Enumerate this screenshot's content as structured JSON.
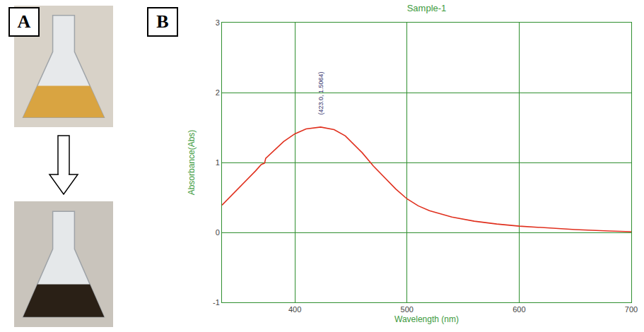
{
  "panel_labels": [
    "A",
    "B"
  ],
  "chart_data": {
    "type": "line",
    "title": "Sample-1",
    "x_label": "Wavelength (nm)",
    "y_label": "Absorbance(Abs)",
    "x": [
      335,
      345,
      355,
      365,
      370,
      373,
      374,
      380,
      390,
      400,
      410,
      423,
      435,
      445,
      450,
      452,
      460,
      470,
      480,
      490,
      500,
      510,
      520,
      540,
      560,
      580,
      600,
      620,
      650,
      680,
      700
    ],
    "values": [
      0.39,
      0.55,
      0.72,
      0.88,
      0.97,
      0.99,
      1.06,
      1.15,
      1.3,
      1.41,
      1.48,
      1.5064,
      1.47,
      1.38,
      1.3,
      1.27,
      1.14,
      0.95,
      0.78,
      0.62,
      0.48,
      0.38,
      0.31,
      0.22,
      0.16,
      0.12,
      0.09,
      0.07,
      0.04,
      0.02,
      0.01
    ],
    "color": "#e0301e",
    "xlim": [
      335,
      700
    ],
    "xticks": [
      400,
      500,
      600,
      700
    ],
    "ylim": [
      -1,
      3
    ],
    "yticks": [
      -1,
      0,
      1,
      2,
      3
    ],
    "grid": true,
    "annotations": [
      {
        "x": 423,
        "y": 1.5064,
        "text": "(423.0, 1.5064)"
      }
    ]
  }
}
